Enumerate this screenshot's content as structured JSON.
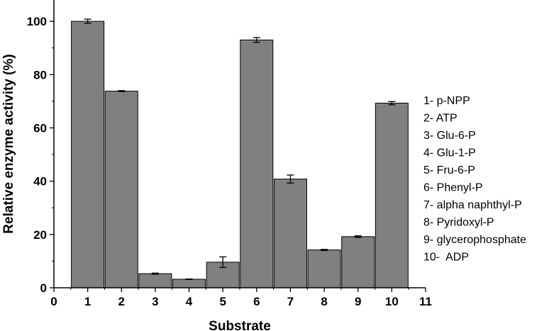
{
  "chart_data": {
    "type": "bar",
    "title": "",
    "xlabel": "Substrate",
    "ylabel": "Relative enzyme activity (%)",
    "xlim": [
      0,
      11
    ],
    "ylim": [
      0,
      108
    ],
    "x_ticks": [
      "0",
      "1",
      "2",
      "3",
      "4",
      "5",
      "6",
      "7",
      "8",
      "9",
      "10",
      "11"
    ],
    "y_ticks": [
      "0",
      "20",
      "40",
      "60",
      "80",
      "100"
    ],
    "categories": [
      "1",
      "2",
      "3",
      "4",
      "5",
      "6",
      "7",
      "8",
      "9",
      "10"
    ],
    "x": [
      1,
      2,
      3,
      4,
      5,
      6,
      7,
      8,
      9,
      10
    ],
    "values": [
      100,
      73.8,
      5.3,
      3.2,
      9.6,
      93,
      40.8,
      14.2,
      19.2,
      69.3
    ],
    "errors": [
      0.8,
      0.2,
      0.2,
      0.1,
      2.0,
      0.9,
      1.5,
      0.2,
      0.3,
      0.6
    ],
    "bar_color": "#808080",
    "grid": false,
    "legend_placement": "right",
    "legend": [
      "1- p-NPP",
      "2- ATP",
      "3- Glu-6-P",
      "4- Glu-1-P",
      "5- Fru-6-P",
      "6- Phenyl-P",
      "7- alpha naphthyl-P",
      "8- Pyridoxyl-P",
      "9- glycerophosphate",
      "10-  ADP"
    ]
  }
}
